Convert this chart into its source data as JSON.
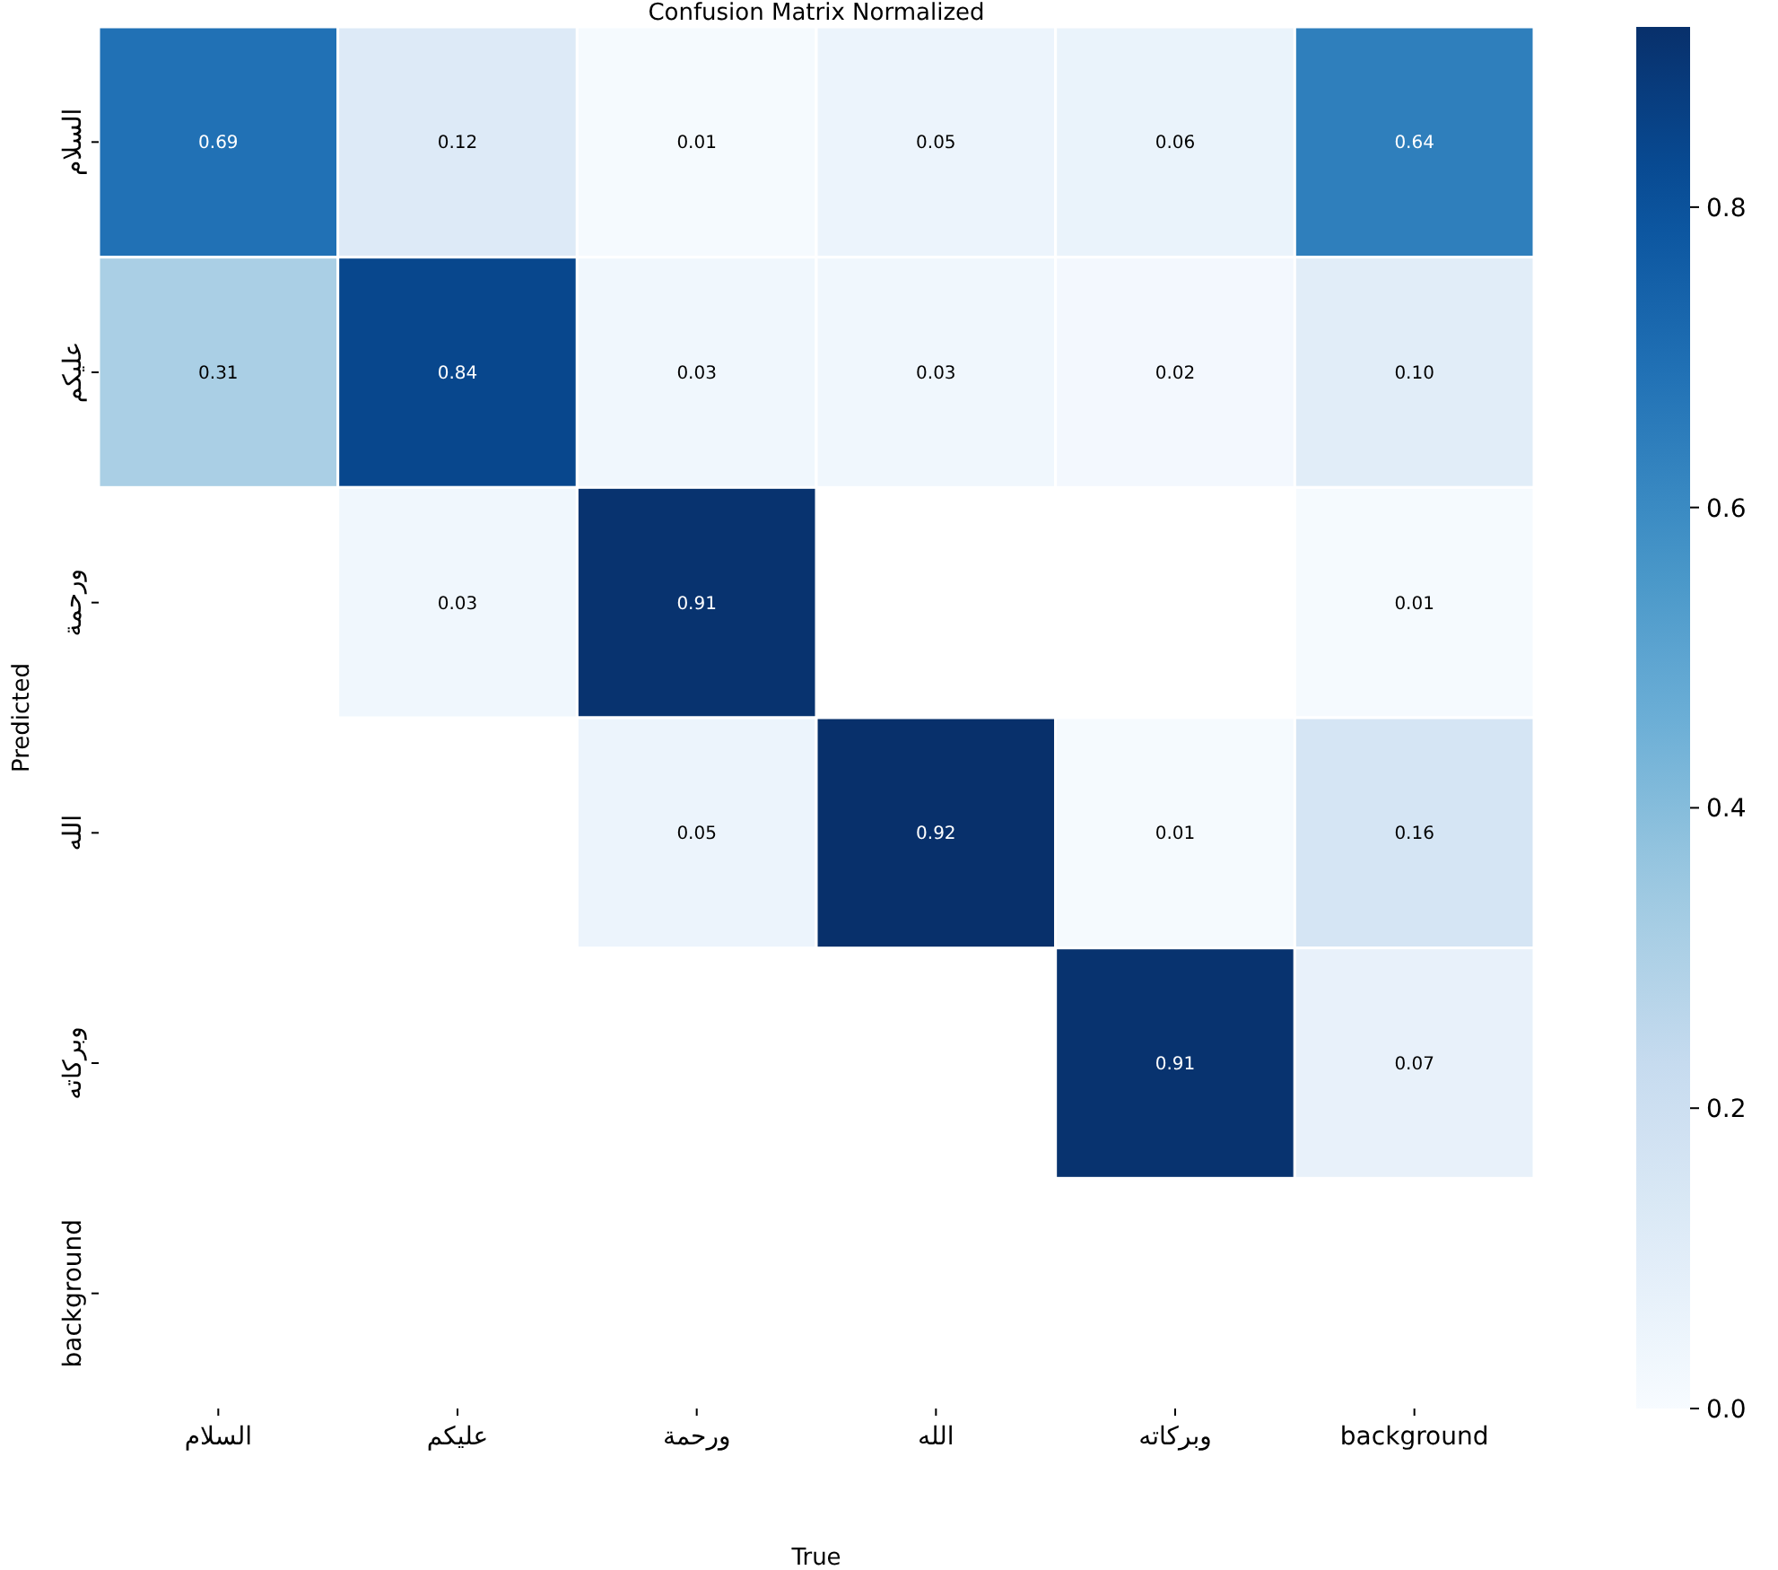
{
  "chart_data": {
    "type": "heatmap",
    "title": "Confusion Matrix Normalized",
    "xlabel": "True",
    "ylabel": "Predicted",
    "categories": [
      "السلام",
      "عليكم",
      "ورحمة",
      "الله",
      "وبركاته",
      "background"
    ],
    "y_categories": [
      "السلام",
      "عليكم",
      "ورحمة",
      "الله",
      "وبركاته",
      "background"
    ],
    "cells": [
      [
        0.69,
        0.12,
        0.01,
        0.05,
        0.06,
        0.64
      ],
      [
        0.31,
        0.84,
        0.03,
        0.03,
        0.02,
        0.1
      ],
      [
        null,
        0.03,
        0.91,
        null,
        null,
        0.01
      ],
      [
        null,
        null,
        0.05,
        0.92,
        0.01,
        0.16
      ],
      [
        null,
        null,
        null,
        null,
        0.91,
        0.07
      ],
      [
        null,
        null,
        null,
        null,
        null,
        null
      ]
    ],
    "cell_labels": [
      [
        "0.69",
        "0.12",
        "0.01",
        "0.05",
        "0.06",
        "0.64"
      ],
      [
        "0.31",
        "0.84",
        "0.03",
        "0.03",
        "0.02",
        "0.10"
      ],
      [
        null,
        "0.03",
        "0.91",
        null,
        null,
        "0.01"
      ],
      [
        null,
        null,
        "0.05",
        "0.92",
        "0.01",
        "0.16"
      ],
      [
        null,
        null,
        null,
        null,
        "0.91",
        "0.07"
      ],
      [
        null,
        null,
        null,
        null,
        null,
        null
      ]
    ],
    "clim": [
      0,
      0.92
    ],
    "cticks": [
      {
        "value": 0,
        "label": "0.0"
      },
      {
        "value": 0.2,
        "label": "0.2"
      },
      {
        "value": 0.4,
        "label": "0.4"
      },
      {
        "value": 0.6,
        "label": "0.6"
      },
      {
        "value": 0.8,
        "label": "0.8"
      }
    ]
  }
}
